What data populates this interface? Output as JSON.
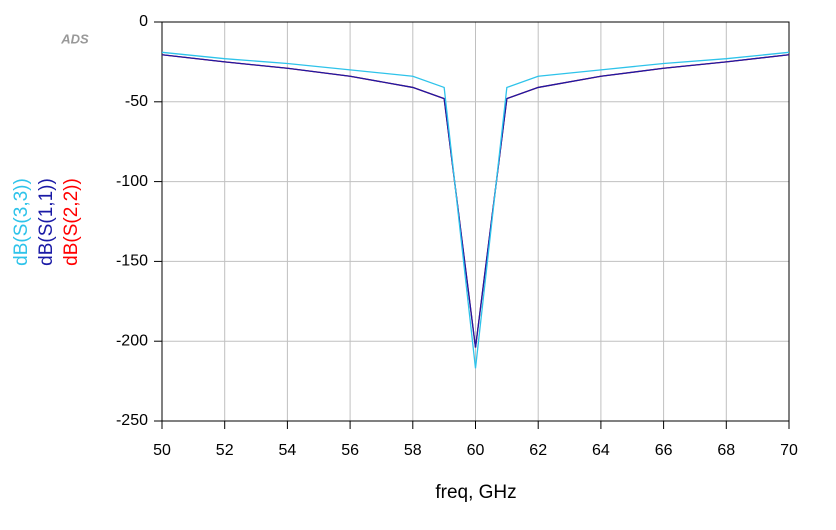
{
  "chart_data": {
    "type": "line",
    "watermark": "ADS",
    "xlabel": "freq, GHz",
    "x": [
      50,
      52,
      54,
      56,
      58,
      59,
      60,
      61,
      62,
      64,
      66,
      68,
      70
    ],
    "series": [
      {
        "name": "dB(S(3,3))",
        "color": "#2ec3ea",
        "values": [
          -19,
          -23,
          -26,
          -30,
          -34,
          -41,
          -217,
          -41,
          -34,
          -30,
          -26,
          -23,
          -19
        ]
      },
      {
        "name": "dB(S(1,1))",
        "color": "#1a1aa6",
        "values": [
          -20.5,
          -25,
          -29,
          -34,
          -41,
          -48,
          -204,
          -48,
          -41,
          -34,
          -29,
          -25,
          -20.5
        ]
      },
      {
        "name": "dB(S(2,2))",
        "color": "#ff0000",
        "values": [
          -20.5,
          -25,
          -29,
          -34,
          -41,
          -48,
          -204,
          -48,
          -41,
          -34,
          -29,
          -25,
          -20.5
        ]
      }
    ],
    "xlim": [
      50,
      70
    ],
    "xticks": [
      50,
      52,
      54,
      56,
      58,
      60,
      62,
      64,
      66,
      68,
      70
    ],
    "ylim": [
      -250,
      0
    ],
    "yticks": [
      -250,
      -200,
      -150,
      -100,
      -50,
      0
    ],
    "grid": true
  }
}
